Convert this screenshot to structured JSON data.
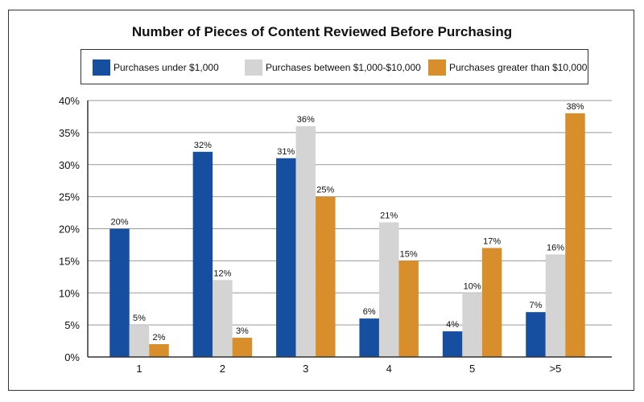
{
  "chart_data": {
    "type": "bar",
    "title": "Number of Pieces of Content Reviewed Before Purchasing",
    "categories": [
      "1",
      "2",
      "3",
      "4",
      "5",
      ">5"
    ],
    "series": [
      {
        "name": "Purchases under $1,000",
        "color": "#164fa0",
        "values": [
          20,
          32,
          31,
          6,
          4,
          7
        ],
        "labels": [
          "20%",
          "32%",
          "31%",
          "6%",
          "4%",
          "7%"
        ]
      },
      {
        "name": "Purchases between $1,000-$10,000",
        "color": "#d4d4d4",
        "values": [
          5,
          12,
          36,
          21,
          10,
          16
        ],
        "labels": [
          "5%",
          "12%",
          "36%",
          "21%",
          "10%",
          "16%"
        ]
      },
      {
        "name": "Purchases greater than $10,000",
        "color": "#d98e2c",
        "values": [
          2,
          3,
          25,
          15,
          17,
          38
        ],
        "labels": [
          "2%",
          "3%",
          "25%",
          "15%",
          "17%",
          "38%"
        ]
      }
    ],
    "ylim": [
      0,
      40
    ],
    "yticks": [
      "0%",
      "5%",
      "10%",
      "15%",
      "20%",
      "25%",
      "30%",
      "35%",
      "40%"
    ],
    "grid": true,
    "legend_position": "top"
  }
}
